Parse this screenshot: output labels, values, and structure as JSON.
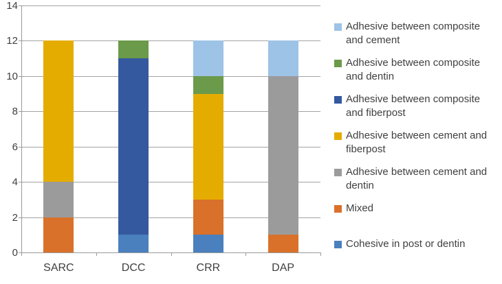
{
  "chart_data": {
    "type": "bar",
    "stacked": true,
    "title": "",
    "xlabel": "",
    "ylabel": "",
    "categories": [
      "SARC",
      "DCC",
      "CRR",
      "DAP"
    ],
    "series": [
      {
        "name": "Cohesive in post or dentin",
        "color": "#4a80bd",
        "values": [
          0,
          1,
          1,
          0
        ]
      },
      {
        "name": "Mixed",
        "color": "#d9712a",
        "values": [
          2,
          0,
          2,
          1
        ]
      },
      {
        "name": "Adhesive between cement and dentin",
        "color": "#9b9b9b",
        "values": [
          2,
          0,
          0,
          9
        ]
      },
      {
        "name": "Adhesive between cement and fiberpost",
        "color": "#e5ac00",
        "values": [
          8,
          0,
          6,
          0
        ]
      },
      {
        "name": "Adhesive between composite and fiberpost",
        "color": "#35599f",
        "values": [
          0,
          10,
          0,
          0
        ]
      },
      {
        "name": "Adhesive between composite and dentin",
        "color": "#6a9a4a",
        "values": [
          0,
          1,
          1,
          0
        ]
      },
      {
        "name": "Adhesive between composite and cement",
        "color": "#9dc3e6",
        "values": [
          0,
          0,
          2,
          2
        ]
      }
    ],
    "legend_order": [
      6,
      5,
      4,
      3,
      2,
      1,
      0
    ],
    "legend_position": "right",
    "yaxis": {
      "min": 0,
      "max": 14,
      "step": 2
    },
    "ytick_labels": [
      "0",
      "2",
      "4",
      "6",
      "8",
      "10",
      "12",
      "14"
    ],
    "grid": true
  },
  "colors": {
    "axis_text": "#3f3f3f",
    "legend_text": "#3f3f3f",
    "gridline": "#a3a3a3",
    "axis_line": "#9a9a9a",
    "background": "#ffffff"
  }
}
